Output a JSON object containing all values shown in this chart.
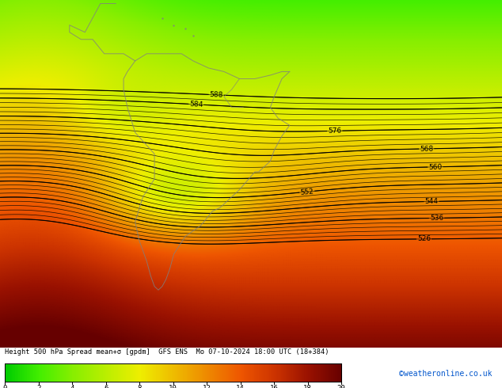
{
  "title": "Height 500 hPa Spread mean+σ [gpdm]  GFS ENS  Mo 07-10-2024 18:00 UTC (18+384)",
  "colorbar_ticks": [
    0,
    2,
    4,
    6,
    8,
    10,
    12,
    14,
    16,
    18,
    20
  ],
  "colorbar_colors": [
    "#00CC00",
    "#33DD00",
    "#66EE00",
    "#99EE00",
    "#CCEE00",
    "#EEDD00",
    "#EEA800",
    "#EE7700",
    "#CC4400",
    "#AA2200",
    "#881100",
    "#660000"
  ],
  "vmin": 0,
  "vmax": 20,
  "contour_levels_major": [
    526,
    528,
    530,
    532,
    534,
    536,
    538,
    540,
    542,
    544,
    546,
    548,
    550,
    552,
    554,
    556,
    558,
    560,
    562,
    564,
    566,
    568,
    570,
    572,
    574,
    576,
    578,
    580,
    582,
    584,
    586,
    588
  ],
  "contour_levels_labeled": [
    526,
    536,
    544,
    552,
    560,
    568,
    576,
    584,
    588
  ],
  "background_color": "#FFFFFF",
  "credit": "©weatheronline.co.uk",
  "figsize": [
    6.34,
    4.9
  ],
  "dpi": 100,
  "lon_min": -110,
  "lon_max": 20,
  "lat_min": -72,
  "lat_max": 25
}
